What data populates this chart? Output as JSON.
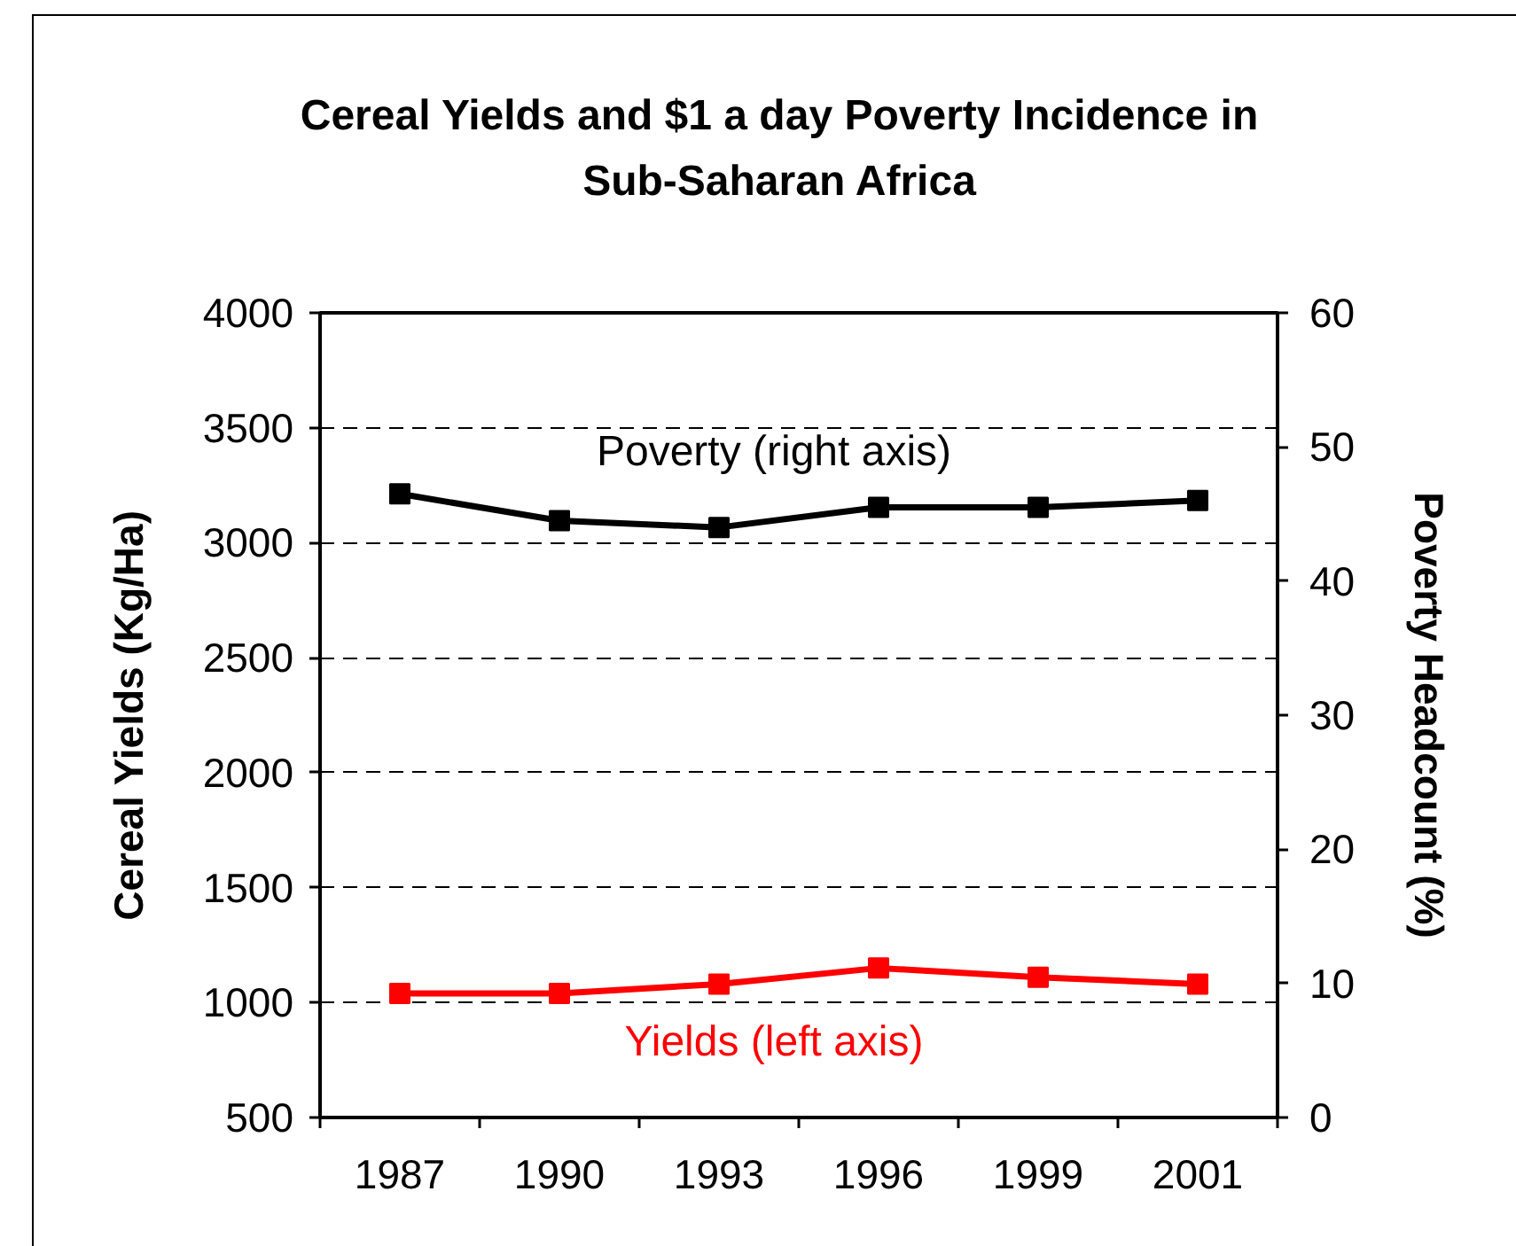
{
  "chart_data": {
    "type": "line",
    "title": "Cereal Yields and $1 a day Poverty Incidence in Sub-Saharan Africa",
    "ylabel": "Cereal Yields (Kg/Ha)",
    "y2label": "Poverty Headcount (%)",
    "categories": [
      "1987",
      "1990",
      "1993",
      "1996",
      "1999",
      "2001"
    ],
    "series": [
      {
        "name": "Poverty (right axis)",
        "color": "#000000",
        "axis": "y2",
        "values": [
          46.5,
          44.5,
          44,
          45.5,
          45.5,
          46
        ]
      },
      {
        "name": "Yields (left axis)",
        "color": "#ff0000",
        "values": [
          1040,
          1040,
          1080,
          1150,
          1110,
          1080
        ]
      }
    ],
    "ylim": [
      500,
      4000
    ],
    "yticks": [
      500,
      1000,
      1500,
      2000,
      2500,
      3000,
      3500,
      4000
    ],
    "y2lim": [
      0,
      60
    ],
    "y2ticks": [
      0,
      10,
      20,
      30,
      40,
      50,
      60
    ],
    "grid": "y",
    "legend": false,
    "marker": "square",
    "line_style": "solid"
  }
}
